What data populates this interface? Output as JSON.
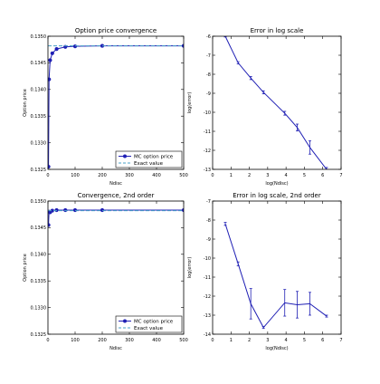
{
  "chart_data": [
    {
      "type": "line",
      "title": "Option price convergence",
      "xlabel": "Ndisc",
      "ylabel": "Option price",
      "xlim": [
        0,
        500
      ],
      "ylim": [
        0.1325,
        0.135
      ],
      "xticks": [
        0,
        100,
        200,
        300,
        400,
        500
      ],
      "xtick_labels": [
        "0",
        "100",
        "200",
        "300",
        "400",
        "500"
      ],
      "yticks": [
        0.1325,
        0.133,
        0.1335,
        0.134,
        0.1345,
        0.135
      ],
      "ytick_labels": [
        "0.1325",
        "0.1330",
        "0.1335",
        "0.1340",
        "0.1345",
        "0.1350"
      ],
      "grid": false,
      "legend_position": "lower-right",
      "series": [
        {
          "name": "MC option price",
          "style": "solid-dots",
          "color": "#1f1fb4",
          "x": [
            2,
            4,
            8,
            16,
            32,
            64,
            100,
            200,
            500
          ],
          "y": [
            0.13255,
            0.13419,
            0.13455,
            0.13468,
            0.13476,
            0.1348,
            0.13481,
            0.13482,
            0.13482
          ]
        },
        {
          "name": "Exact value",
          "style": "dashed",
          "color": "#4aa0c8",
          "x": [
            0,
            500
          ],
          "y": [
            0.13482,
            0.13482
          ]
        }
      ]
    },
    {
      "type": "line",
      "title": "Error in log scale",
      "xlabel": "log(Ndisc)",
      "ylabel": "log(error)",
      "xlim": [
        0,
        7
      ],
      "ylim": [
        -13,
        -6
      ],
      "xticks": [
        0,
        1,
        2,
        3,
        4,
        5,
        6,
        7
      ],
      "xtick_labels": [
        "0",
        "1",
        "2",
        "3",
        "4",
        "5",
        "6",
        "7"
      ],
      "yticks": [
        -13,
        -12,
        -11,
        -10,
        -9,
        -8,
        -7,
        -6
      ],
      "ytick_labels": [
        "-13",
        "-12",
        "-11",
        "-10",
        "-9",
        "-8",
        "-7",
        "-6"
      ],
      "grid": false,
      "series": [
        {
          "style": "line-errorbars",
          "color": "#1f1fb4",
          "x": [
            0.69,
            1.39,
            2.08,
            2.77,
            3.93,
            4.61,
            5.3,
            6.21
          ],
          "y": [
            -6.0,
            -7.4,
            -8.2,
            -8.95,
            -10.05,
            -10.8,
            -11.85,
            -13.0
          ],
          "err": [
            0.04,
            0.06,
            0.08,
            0.08,
            0.1,
            0.18,
            0.35,
            0.1
          ]
        }
      ]
    },
    {
      "type": "line",
      "title": "Convergence, 2nd order",
      "xlabel": "Ndisc",
      "ylabel": "Option price",
      "xlim": [
        0,
        500
      ],
      "ylim": [
        0.1325,
        0.135
      ],
      "xticks": [
        0,
        100,
        200,
        300,
        400,
        500
      ],
      "xtick_labels": [
        "0",
        "100",
        "200",
        "300",
        "400",
        "500"
      ],
      "yticks": [
        0.1325,
        0.133,
        0.1335,
        0.134,
        0.1345,
        0.135
      ],
      "ytick_labels": [
        "0.1325",
        "0.1330",
        "0.1335",
        "0.1340",
        "0.1345",
        "0.1350"
      ],
      "grid": false,
      "legend_position": "lower-right",
      "series": [
        {
          "name": "MC option price",
          "style": "solid-dots",
          "color": "#1f1fb4",
          "x": [
            2,
            4,
            8,
            16,
            32,
            64,
            100,
            200,
            500
          ],
          "y": [
            0.13455,
            0.1348,
            0.13479,
            0.13482,
            0.13483,
            0.13483,
            0.13483,
            0.13483,
            0.13483
          ]
        },
        {
          "name": "Exact value",
          "style": "dashed",
          "color": "#4aa0c8",
          "x": [
            0,
            500
          ],
          "y": [
            0.13482,
            0.13482
          ]
        }
      ]
    },
    {
      "type": "line",
      "title": "Error in log scale, 2nd order",
      "xlabel": "log(Ndisc)",
      "ylabel": "log(error)",
      "xlim": [
        0,
        7
      ],
      "ylim": [
        -14,
        -7
      ],
      "xticks": [
        0,
        1,
        2,
        3,
        4,
        5,
        6,
        7
      ],
      "xtick_labels": [
        "0",
        "1",
        "2",
        "3",
        "4",
        "5",
        "6",
        "7"
      ],
      "yticks": [
        -14,
        -13,
        -12,
        -11,
        -10,
        -9,
        -8,
        -7
      ],
      "ytick_labels": [
        "-14",
        "-13",
        "-12",
        "-11",
        "-10",
        "-9",
        "-8",
        "-7"
      ],
      "grid": false,
      "series": [
        {
          "style": "line-errorbars",
          "color": "#1f1fb4",
          "x": [
            0.69,
            1.39,
            2.08,
            2.77,
            3.93,
            4.61,
            5.3,
            6.21
          ],
          "y": [
            -8.2,
            -10.3,
            -12.4,
            -13.65,
            -12.35,
            -12.45,
            -12.4,
            -13.05
          ],
          "err": [
            0.08,
            0.1,
            0.8,
            0.05,
            0.7,
            0.7,
            0.6,
            0.05
          ]
        }
      ]
    }
  ]
}
